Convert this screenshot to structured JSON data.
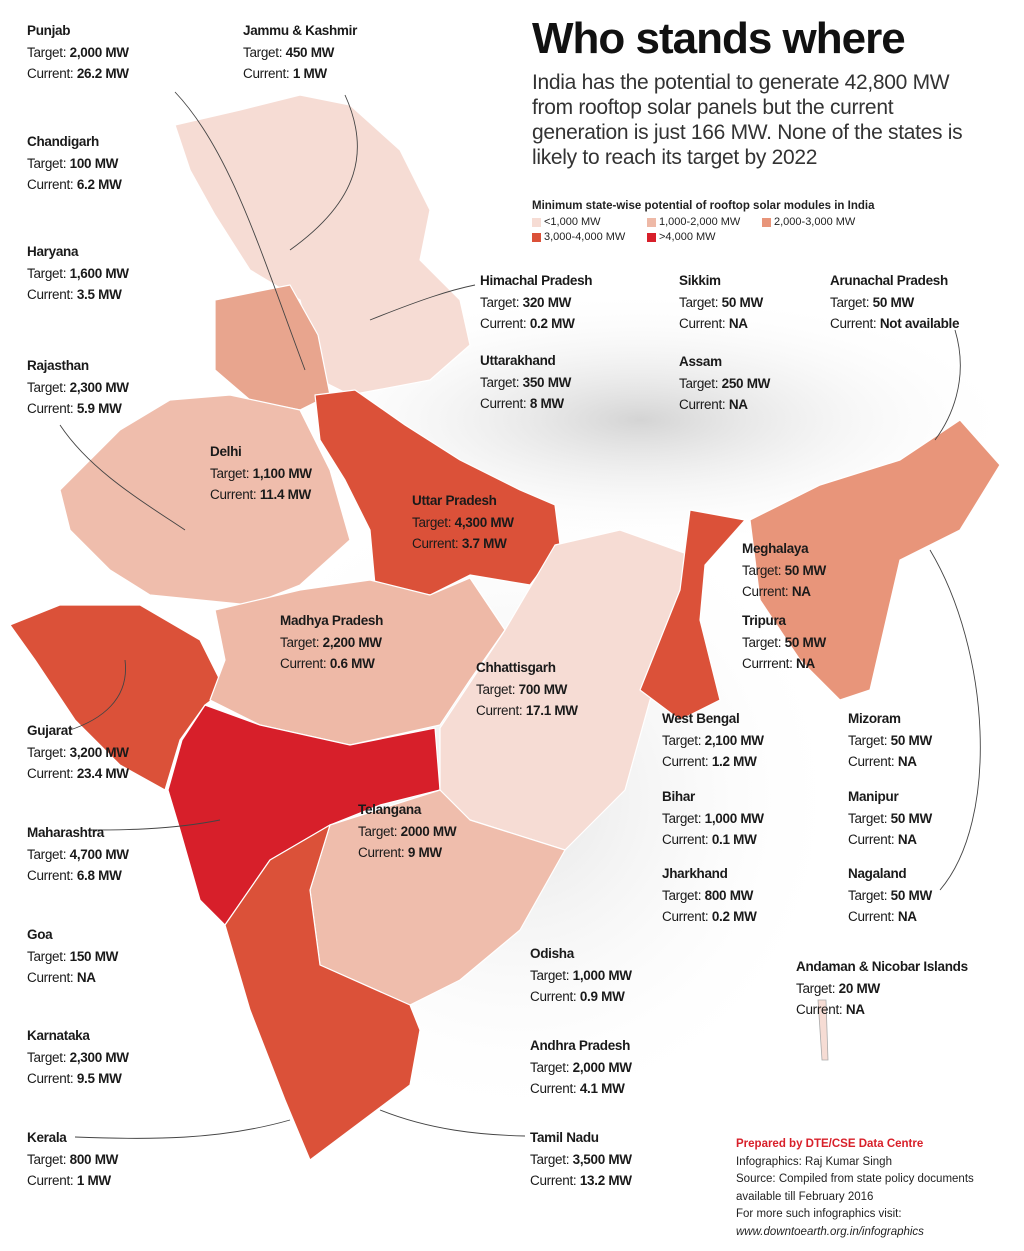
{
  "header": {
    "title": "Who stands where",
    "subtitle": "India has the potential to generate 42,800 MW from rooftop solar panels but the current generation is just 166 MW. None of the states is likely to reach its target by 2022"
  },
  "legend": {
    "title": "Minimum state-wise potential of rooftop solar modules in India",
    "items": [
      {
        "label": "<1,000 MW",
        "color": "#f6dcd4"
      },
      {
        "label": "1,000-2,000 MW",
        "color": "#eeb9a7"
      },
      {
        "label": "2,000-3,000 MW",
        "color": "#e8957a"
      },
      {
        "label": "3,000-4,000 MW",
        "color": "#db5139"
      },
      {
        "label": ">4,000 MW",
        "color": "#d71f2a"
      }
    ]
  },
  "labels": {
    "target": "Target:",
    "current": "Current:",
    "current_typo": "Currrent:"
  },
  "states": [
    {
      "name": "Punjab",
      "target": "2,000 MW",
      "current": "26.2 MW"
    },
    {
      "name": "Jammu & Kashmir",
      "target": "450 MW",
      "current": "1 MW"
    },
    {
      "name": "Chandigarh",
      "target": "100 MW",
      "current": "6.2 MW"
    },
    {
      "name": "Haryana",
      "target": "1,600 MW",
      "current": "3.5 MW"
    },
    {
      "name": "Rajasthan",
      "target": "2,300 MW",
      "current": "5.9 MW"
    },
    {
      "name": "Delhi",
      "target": "1,100 MW",
      "current": "11.4 MW"
    },
    {
      "name": "Uttar Pradesh",
      "target": "4,300 MW",
      "current": "3.7 MW"
    },
    {
      "name": "Himachal Pradesh",
      "target": "320 MW",
      "current": "0.2 MW"
    },
    {
      "name": "Uttarakhand",
      "target": "350 MW",
      "current": "8 MW"
    },
    {
      "name": "Sikkim",
      "target": "50 MW",
      "current": "NA"
    },
    {
      "name": "Arunachal Pradesh",
      "target": "50 MW",
      "current": "Not available"
    },
    {
      "name": "Assam",
      "target": "250 MW",
      "current": "NA"
    },
    {
      "name": "Meghalaya",
      "target": "50 MW",
      "current": "NA"
    },
    {
      "name": "Tripura",
      "target": "50 MW",
      "current": "NA"
    },
    {
      "name": "Madhya Pradesh",
      "target": "2,200 MW",
      "current": "0.6 MW"
    },
    {
      "name": "Chhattisgarh",
      "target": "700 MW",
      "current": "17.1 MW"
    },
    {
      "name": "West Bengal",
      "target": "2,100 MW",
      "current": "1.2 MW"
    },
    {
      "name": "Mizoram",
      "target": "50 MW",
      "current": "NA"
    },
    {
      "name": "Gujarat",
      "target": "3,200 MW",
      "current": "23.4 MW"
    },
    {
      "name": "Bihar",
      "target": "1,000 MW",
      "current": "0.1 MW"
    },
    {
      "name": "Manipur",
      "target": "50 MW",
      "current": "NA"
    },
    {
      "name": "Telangana",
      "target": "2000 MW",
      "current": "9 MW"
    },
    {
      "name": "Maharashtra",
      "target": "4,700 MW",
      "current": "6.8 MW"
    },
    {
      "name": "Jharkhand",
      "target": "800 MW",
      "current": "0.2 MW"
    },
    {
      "name": "Nagaland",
      "target": "50 MW",
      "current": "NA"
    },
    {
      "name": "Goa",
      "target": "150 MW",
      "current": "NA"
    },
    {
      "name": "Odisha",
      "target": "1,000 MW",
      "current": "0.9 MW"
    },
    {
      "name": "Andaman & Nicobar Islands",
      "target": "20 MW",
      "current": "NA"
    },
    {
      "name": "Karnataka",
      "target": "2,300 MW",
      "current": "9.5 MW"
    },
    {
      "name": "Andhra Pradesh",
      "target": "2,000 MW",
      "current": "4.1 MW"
    },
    {
      "name": "Kerala",
      "target": "800 MW",
      "current": "1 MW"
    },
    {
      "name": "Tamil Nadu",
      "target": "3,500 MW",
      "current": "13.2 MW"
    }
  ],
  "credits": {
    "prepared_by": "Prepared by DTE/CSE Data Centre",
    "infographics": "Infographics: Raj Kumar Singh",
    "source_1": "Source: Compiled from state policy documents",
    "source_2": "available till February 2016",
    "more": "For more such infographics visit:",
    "url": "www.downtoearth.org.in/infographics"
  }
}
